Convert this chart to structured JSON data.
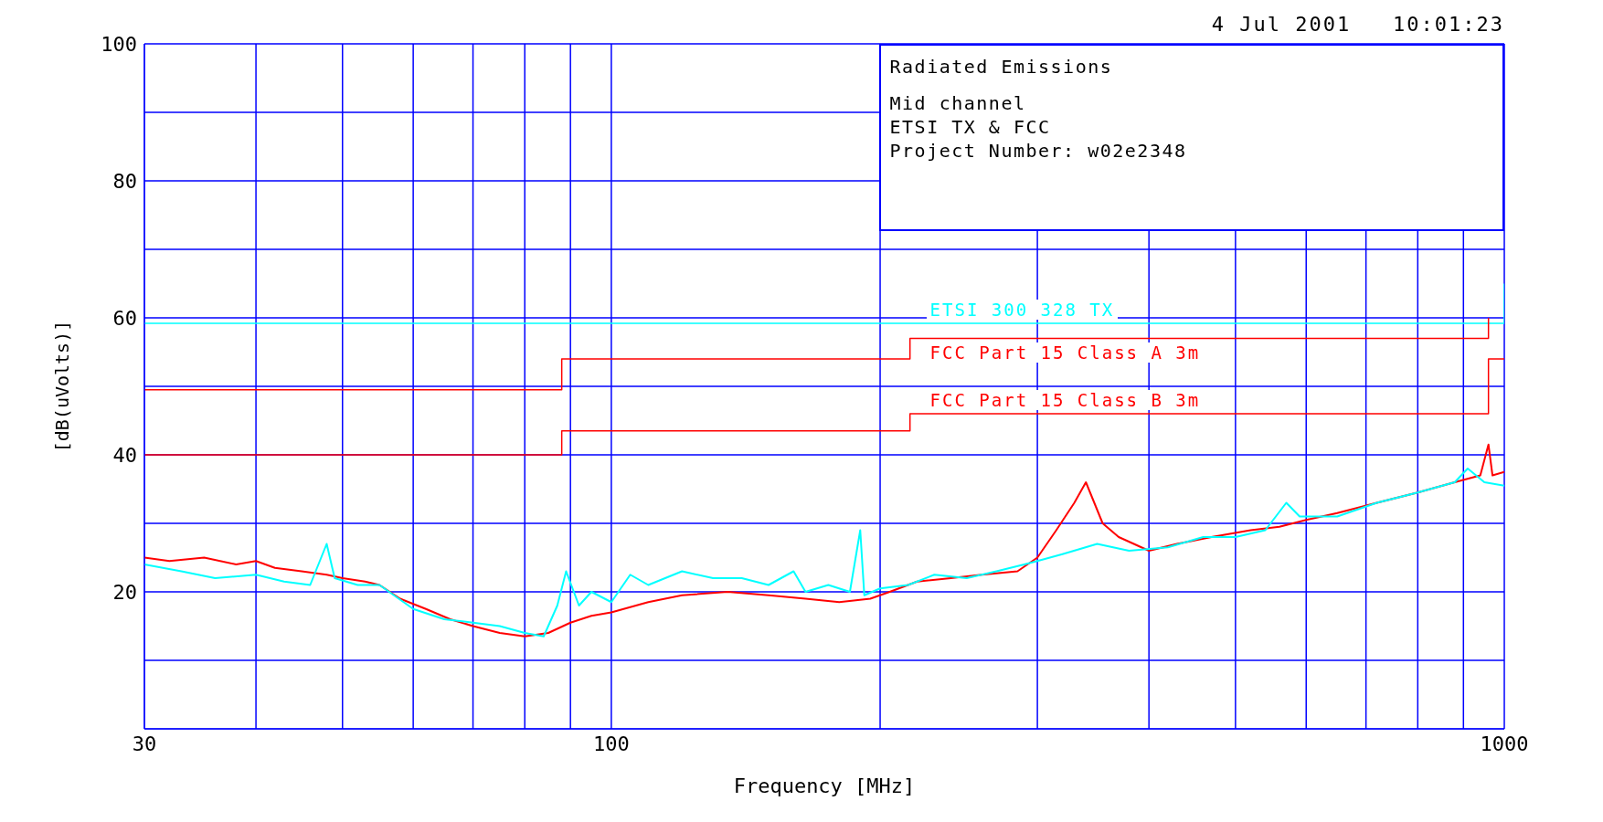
{
  "chart_data": {
    "type": "line",
    "xlabel": "Frequency [MHz]",
    "ylabel": "[dB(uVolts)]",
    "annotations": [
      "4 Jul 2001   10:01:23",
      "Radiated Emissions",
      "Mid channel",
      "ETSI TX & FCC",
      "Project Number: w02e2348"
    ],
    "log": "x",
    "grid": true,
    "legend": false,
    "xlim": [
      30,
      1000
    ],
    "xticks": [
      30,
      {
        "value": 40,
        "label": null
      },
      {
        "value": 50,
        "label": null
      },
      {
        "value": 60,
        "label": null
      },
      {
        "value": 70,
        "label": null
      },
      {
        "value": 80,
        "label": null
      },
      {
        "value": 90,
        "label": null
      },
      100,
      {
        "value": 200,
        "label": null
      },
      {
        "value": 300,
        "label": null
      },
      {
        "value": 400,
        "label": null
      },
      {
        "value": 500,
        "label": null
      },
      {
        "value": 600,
        "label": null
      },
      {
        "value": 700,
        "label": null
      },
      {
        "value": 800,
        "label": null
      },
      {
        "value": 900,
        "label": null
      },
      1000
    ],
    "ylim": [
      0,
      100
    ],
    "yticks": [
      {
        "value": 0,
        "label": null
      },
      {
        "value": 10,
        "label": null
      },
      20,
      {
        "value": 30,
        "label": null
      },
      40,
      {
        "value": 50,
        "label": null
      },
      60,
      {
        "value": 70,
        "label": null
      },
      80,
      {
        "value": 90,
        "label": null
      },
      100
    ],
    "series": [
      {
        "type": "step",
        "name": "ETSI 300 328 TX",
        "color": "#00ffff",
        "x": [
          30,
          1000,
          1000
        ],
        "values": [
          59.2,
          59.2,
          65
        ]
      },
      {
        "type": "step",
        "name": "FCC Part 15 Class A 3m",
        "color": "#ff0000",
        "x": [
          30,
          88,
          216,
          960
        ],
        "values": [
          49.5,
          54,
          57,
          60
        ]
      },
      {
        "type": "step",
        "name": "FCC Part 15 Class B 3m",
        "color": "#ff0000",
        "x": [
          30,
          88,
          216,
          960,
          1000
        ],
        "values": [
          40,
          43.5,
          46,
          54,
          54
        ]
      },
      {
        "color": "#ff0000",
        "x": [
          30,
          32,
          35,
          38,
          40,
          42,
          45,
          48,
          50,
          53,
          55,
          58,
          62,
          66,
          70,
          75,
          80,
          85,
          90,
          95,
          100,
          110,
          120,
          135,
          150,
          165,
          180,
          195,
          205,
          220,
          240,
          260,
          285,
          300,
          315,
          330,
          340,
          355,
          370,
          400,
          430,
          470,
          520,
          560,
          600,
          650,
          720,
          800,
          880,
          940,
          960,
          970,
          1000
        ],
        "values": [
          25,
          24.5,
          25,
          24,
          24.5,
          23.5,
          23,
          22.5,
          22,
          21.5,
          21,
          19,
          17.5,
          16,
          15,
          14,
          13.5,
          14,
          15.5,
          16.5,
          17,
          18.5,
          19.5,
          20,
          19.5,
          19,
          18.5,
          19,
          20,
          21.5,
          22,
          22.5,
          23,
          25,
          29,
          33,
          36,
          30,
          28,
          26,
          27,
          28,
          29,
          29.5,
          30.5,
          31.5,
          33,
          34.5,
          36,
          37,
          41.5,
          37,
          37.5
        ]
      },
      {
        "color": "#00ffff",
        "x": [
          30,
          33,
          36,
          40,
          43,
          46,
          48,
          49,
          52,
          55,
          60,
          65,
          70,
          75,
          80,
          84,
          87,
          89,
          92,
          95,
          100,
          105,
          110,
          120,
          130,
          140,
          150,
          160,
          165,
          175,
          185,
          190,
          192,
          200,
          215,
          230,
          250,
          270,
          290,
          300,
          320,
          350,
          380,
          420,
          460,
          500,
          540,
          570,
          590,
          650,
          720,
          800,
          880,
          910,
          950,
          1000
        ],
        "values": [
          24,
          23,
          22,
          22.5,
          21.5,
          21,
          27,
          22,
          21,
          21,
          17.5,
          16,
          15.5,
          15,
          14,
          13.5,
          18,
          23,
          18,
          20,
          18.5,
          22.5,
          21,
          23,
          22,
          22,
          21,
          23,
          20,
          21,
          20,
          29,
          19.5,
          20.5,
          21,
          22.5,
          22,
          23,
          24,
          24.5,
          25.5,
          27,
          26,
          26.5,
          28,
          28,
          29,
          33,
          31,
          31,
          33,
          34.5,
          36,
          38,
          36,
          35.5
        ]
      }
    ]
  }
}
